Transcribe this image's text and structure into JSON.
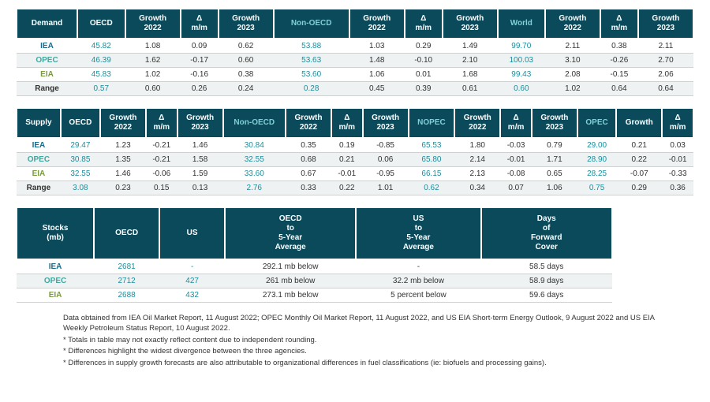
{
  "colors": {
    "header_bg": "#0b4a5a",
    "header_fg": "#ffffff",
    "iea": "#1a6b8a",
    "opec": "#3fa9a0",
    "eia": "#7a9a3f",
    "range": "#333333",
    "teal_num": "#1a8f9e",
    "zebra": "#eef2f2",
    "border": "#d0d0d0"
  },
  "demand": {
    "headers": [
      "Demand",
      "OECD",
      "Growth 2022",
      "Δ m/m",
      "Growth 2023",
      "Non-OECD",
      "Growth 2022",
      "Δ m/m",
      "Growth 2023",
      "World",
      "Growth 2022",
      "Δ m/m",
      "Growth 2023"
    ],
    "rows": [
      {
        "label": "IEA",
        "cls": "c-iea",
        "cells": [
          "45.82",
          "1.08",
          "0.09",
          "0.62",
          "53.88",
          "1.03",
          "0.29",
          "1.49",
          "99.70",
          "2.11",
          "0.38",
          "2.11"
        ],
        "teal": [
          0,
          4,
          8
        ]
      },
      {
        "label": "OPEC",
        "cls": "c-opec",
        "cells": [
          "46.39",
          "1.62",
          "-0.17",
          "0.60",
          "53.63",
          "1.48",
          "-0.10",
          "2.10",
          "100.03",
          "3.10",
          "-0.26",
          "2.70"
        ],
        "teal": [
          0,
          4,
          8
        ]
      },
      {
        "label": "EIA",
        "cls": "c-eia",
        "cells": [
          "45.83",
          "1.02",
          "-0.16",
          "0.38",
          "53.60",
          "1.06",
          "0.01",
          "1.68",
          "99.43",
          "2.08",
          "-0.15",
          "2.06"
        ],
        "teal": [
          0,
          4,
          8
        ]
      },
      {
        "label": "Range",
        "cls": "c-range",
        "cells": [
          "0.57",
          "0.60",
          "0.26",
          "0.24",
          "0.28",
          "0.45",
          "0.39",
          "0.61",
          "0.60",
          "1.02",
          "0.64",
          "0.64"
        ],
        "teal": [
          0,
          4,
          8
        ]
      }
    ]
  },
  "supply": {
    "headers": [
      "Supply",
      "OECD",
      "Growth 2022",
      "Δ m/m",
      "Growth 2023",
      "Non-OECD",
      "Growth 2022",
      "Δ m/m",
      "Growth 2023",
      "NOPEC",
      "Growth 2022",
      "Δ m/m",
      "Growth 2023",
      "OPEC",
      "Growth",
      "Δ m/m"
    ],
    "rows": [
      {
        "label": "IEA",
        "cls": "c-iea",
        "cells": [
          "29.47",
          "1.23",
          "-0.21",
          "1.46",
          "30.84",
          "0.35",
          "0.19",
          "-0.85",
          "65.53",
          "1.80",
          "-0.03",
          "0.79",
          "29.00",
          "0.21",
          "0.03"
        ],
        "teal": [
          0,
          4,
          8,
          12
        ]
      },
      {
        "label": "OPEC",
        "cls": "c-opec",
        "cells": [
          "30.85",
          "1.35",
          "-0.21",
          "1.58",
          "32.55",
          "0.68",
          "0.21",
          "0.06",
          "65.80",
          "2.14",
          "-0.01",
          "1.71",
          "28.90",
          "0.22",
          "-0.01"
        ],
        "teal": [
          0,
          4,
          8,
          12
        ]
      },
      {
        "label": "EIA",
        "cls": "c-eia",
        "cells": [
          "32.55",
          "1.46",
          "-0.06",
          "1.59",
          "33.60",
          "0.67",
          "-0.01",
          "-0.95",
          "66.15",
          "2.13",
          "-0.08",
          "0.65",
          "28.25",
          "-0.07",
          "-0.33"
        ],
        "teal": [
          0,
          4,
          8,
          12
        ]
      },
      {
        "label": "Range",
        "cls": "c-range",
        "cells": [
          "3.08",
          "0.23",
          "0.15",
          "0.13",
          "2.76",
          "0.33",
          "0.22",
          "1.01",
          "0.62",
          "0.34",
          "0.07",
          "1.06",
          "0.75",
          "0.29",
          "0.36"
        ],
        "teal": [
          0,
          4,
          8,
          12
        ]
      }
    ]
  },
  "stocks": {
    "headers": [
      "Stocks (mb)",
      "OECD",
      "US",
      "OECD to 5-Year Average",
      "US to 5-Year Average",
      "Days of Forward Cover"
    ],
    "rows": [
      {
        "label": "IEA",
        "cls": "c-iea",
        "cells": [
          "2681",
          "-",
          "292.1 mb below",
          "-",
          "58.5 days"
        ],
        "teal": [
          0,
          1
        ]
      },
      {
        "label": "OPEC",
        "cls": "c-opec",
        "cells": [
          "2712",
          "427",
          "261 mb below",
          "32.2 mb below",
          "58.9 days"
        ],
        "teal": [
          0,
          1
        ]
      },
      {
        "label": "EIA",
        "cls": "c-eia",
        "cells": [
          "2688",
          "432",
          "273.1 mb below",
          "5 percent below",
          "59.6 days"
        ],
        "teal": [
          0,
          1
        ]
      }
    ]
  },
  "footnotes": {
    "source": "Data obtained from IEA Oil Market Report, 11 August 2022; OPEC Monthly Oil Market Report, 11 August 2022, and US EIA Short-term Energy Outlook, 9 August 2022 and US EIA Weekly Petroleum Status Report, 10 August 2022.",
    "notes": [
      "* Totals in table may not exactly reflect content due to independent rounding.",
      "* Differences highlight the widest divergence between the three agencies.",
      "* Differences in supply growth forecasts are also attributable to organizational differences in fuel classifications (ie: biofuels and processing gains)."
    ]
  }
}
